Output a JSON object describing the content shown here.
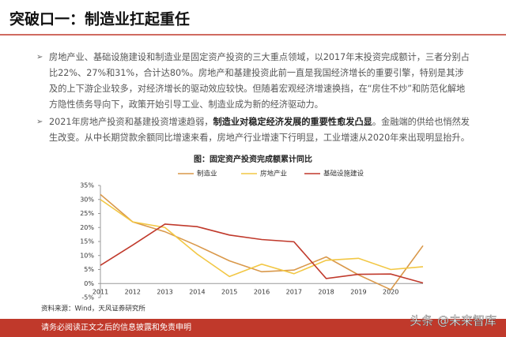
{
  "header": {
    "title": "突破口一：制造业扛起重任"
  },
  "bullets": [
    [
      "房地产业、基础设施建设和制造业是固定资产投资的三大重点领域，以2017年末投资完成额计，三者分别占比22%、27%和31%，合计达80%。房地产和基建投资此前一直是我国经济增长的重要引擎，特别是其涉及的上下游企业较多，对经济增长的驱动效应较快。但随着宏观经济增速换挡，在“房住不炒”和防范化解地方隐性债务导向下，政策开始引导工业、制造业成为新的经济驱动力。"
    ],
    [
      "2021年房地产投资和基建投资增速趋弱，",
      "制造业对稳定经济发展的重要性愈发凸显",
      "。金融端的供给也悄然发生改变。从中长期贷款余额同比增速来看，房地产行业增速下行明显，工业增速从2020年来出现明显抬升。"
    ]
  ],
  "chart_data": {
    "type": "line",
    "title": "图：固定资产投资完成额累计同比",
    "categories": [
      "2011",
      "2012",
      "2013",
      "2014",
      "2015",
      "2016",
      "2017",
      "2018",
      "2019",
      "2020",
      null
    ],
    "series": [
      {
        "name": "制造业",
        "color": "#d9984a",
        "values": [
          31.8,
          22,
          18.5,
          13.5,
          8.1,
          4.2,
          4.8,
          9.5,
          3.1,
          -2.2,
          13.5
        ]
      },
      {
        "name": "房地产业",
        "color": "#f2c744",
        "values": [
          30,
          22,
          20,
          10.5,
          2.5,
          6.9,
          3.5,
          8.3,
          9,
          5,
          6
        ]
      },
      {
        "name": "基础设施建设",
        "color": "#c0392b",
        "values": [
          6.5,
          13.7,
          21.2,
          20.3,
          17.3,
          15.7,
          14.9,
          1.8,
          3.3,
          3.4,
          0.2
        ]
      }
    ],
    "ylim": [
      -5,
      35
    ],
    "yticks": [
      {
        "value": -5,
        "label": "-5%"
      },
      {
        "value": 0,
        "label": "0%"
      },
      {
        "value": 5,
        "label": "5%"
      },
      {
        "value": 10,
        "label": "10%"
      },
      {
        "value": 15,
        "label": "15%"
      },
      {
        "value": 20,
        "label": "20%"
      },
      {
        "value": 25,
        "label": "25%"
      },
      {
        "value": 30,
        "label": "30%"
      },
      {
        "value": 35,
        "label": "35%"
      }
    ],
    "legend": "top",
    "source": "资料来源：Wind，天风证券研究所"
  },
  "footer": {
    "disclaimer": "请务必阅读正文之后的信息披露和免责申明",
    "watermark": "头条 @未来智库"
  }
}
